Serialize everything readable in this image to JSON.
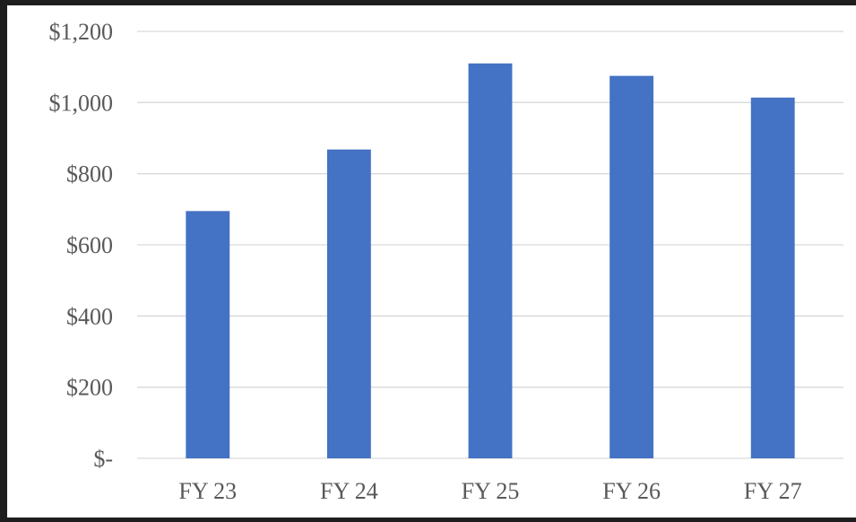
{
  "chart_data": {
    "type": "bar",
    "title": "",
    "xlabel": "",
    "ylabel": "",
    "categories": [
      "FY 23",
      "FY 24",
      "FY 25",
      "FY 26",
      "FY 27"
    ],
    "values": [
      695,
      868,
      1110,
      1075,
      1014
    ],
    "ylim": [
      0,
      1200
    ],
    "yticks": [
      0,
      200,
      400,
      600,
      800,
      1000,
      1200
    ],
    "ytick_labels": [
      "$-",
      "$200",
      "$400",
      "$600",
      "$800",
      "$1,000",
      "$1,200"
    ],
    "grid": true,
    "legend": "none",
    "colors": {
      "bar": "#4472C4",
      "grid": "#D9D9D9",
      "text": "#595959",
      "frame": "#1e1e1e",
      "background": "#FFFFFF"
    }
  }
}
